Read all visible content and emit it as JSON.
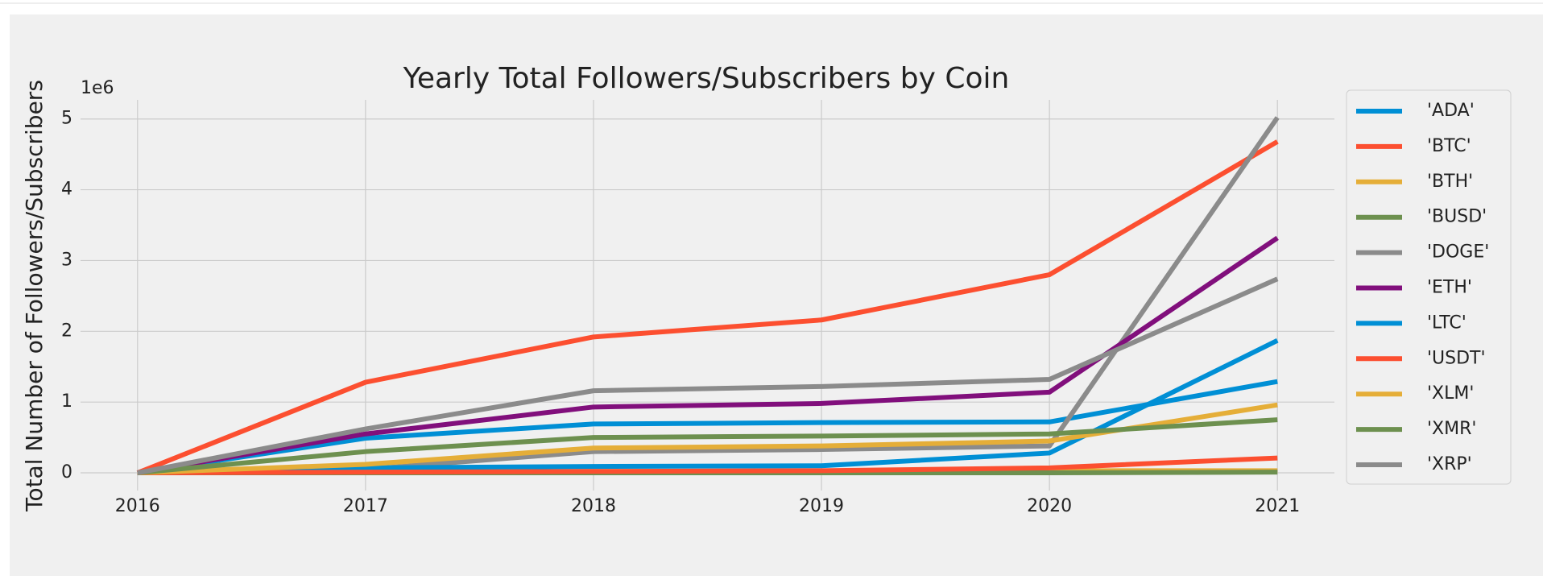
{
  "chart_data": {
    "type": "line",
    "title": "Yearly Total Followers/Subscribers by Coin",
    "y_label": "Total Number of Followers/Subscribers",
    "y_offset_label": "1e6",
    "x": [
      2016,
      2017,
      2018,
      2019,
      2020,
      2021
    ],
    "xlim": [
      2015.75,
      2021.25
    ],
    "xticks": [
      2016,
      2017,
      2018,
      2019,
      2020,
      2021
    ],
    "ylim": [
      -0.25,
      5.27
    ],
    "yticks": [
      0,
      1,
      2,
      3,
      4,
      5
    ],
    "grid": true,
    "legend": "outside-right",
    "series": [
      {
        "name": "'ADA'",
        "color": "#008fd5",
        "values": [
          0,
          0.49,
          0.69,
          0.71,
          0.72,
          1.29
        ]
      },
      {
        "name": "'BTC'",
        "color": "#fc4f30",
        "values": [
          0,
          1.28,
          1.92,
          2.16,
          2.8,
          4.68
        ]
      },
      {
        "name": "'BTH'",
        "color": "#e5ae38",
        "values": [
          0,
          0.01,
          0.02,
          0.02,
          0.03,
          0.03
        ]
      },
      {
        "name": "'BUSD'",
        "color": "#6d904f",
        "values": [
          0,
          0,
          0,
          0,
          0,
          0.01
        ]
      },
      {
        "name": "'DOGE'",
        "color": "#8b8b8b",
        "values": [
          0,
          0.05,
          0.3,
          0.33,
          0.38,
          5.02
        ]
      },
      {
        "name": "'ETH'",
        "color": "#810f7c",
        "values": [
          0,
          0.55,
          0.93,
          0.98,
          1.14,
          3.32
        ]
      },
      {
        "name": "'LTC'",
        "color": "#008fd5",
        "values": [
          0,
          0.07,
          0.09,
          0.1,
          0.28,
          1.87
        ]
      },
      {
        "name": "'USDT'",
        "color": "#fc4f30",
        "values": [
          0,
          0.01,
          0.02,
          0.03,
          0.07,
          0.21
        ]
      },
      {
        "name": "'XLM'",
        "color": "#e5ae38",
        "values": [
          0,
          0.12,
          0.35,
          0.38,
          0.45,
          0.96
        ]
      },
      {
        "name": "'XMR'",
        "color": "#6d904f",
        "values": [
          0,
          0.3,
          0.5,
          0.52,
          0.55,
          0.75
        ]
      },
      {
        "name": "'XRP'",
        "color": "#8b8b8b",
        "values": [
          0,
          0.62,
          1.16,
          1.22,
          1.32,
          2.74
        ]
      }
    ]
  }
}
